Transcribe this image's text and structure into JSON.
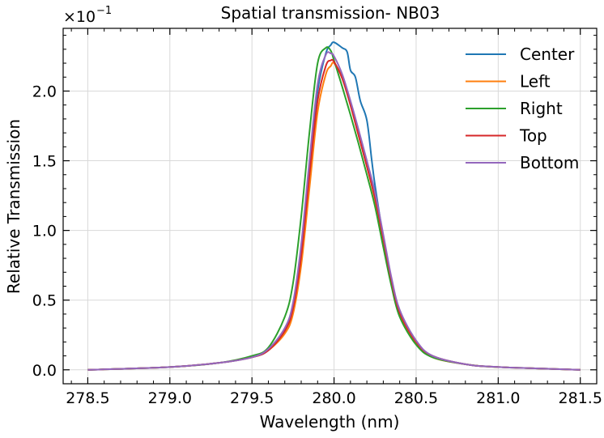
{
  "chart_data": {
    "type": "line",
    "title": "Spatial transmission- NB03",
    "xlabel": "Wavelength (nm)",
    "ylabel": "Relative Transmission",
    "xlim": [
      278.35,
      281.6
    ],
    "ylim": [
      -0.1,
      2.45
    ],
    "xticks": [
      278.5,
      279.0,
      279.5,
      280.0,
      280.5,
      281.0,
      281.5
    ],
    "xtick_labels": [
      "278.5",
      "279.0",
      "279.5",
      "280.0",
      "280.5",
      "281.0",
      "281.5"
    ],
    "yticks": [
      0.0,
      0.5,
      1.0,
      1.5,
      2.0
    ],
    "ytick_labels": [
      "0.0",
      "0.5",
      "1.0",
      "1.5",
      "2.0"
    ],
    "y_scale_base": "×10",
    "y_scale_exp": "−1",
    "grid": true,
    "legend_position": "top-right",
    "series": [
      {
        "name": "Center",
        "color": "#1f77b4",
        "x": [
          278.5,
          279.0,
          279.3,
          279.5,
          279.6,
          279.7,
          279.75,
          279.8,
          279.85,
          279.9,
          279.95,
          279.98,
          280.0,
          280.05,
          280.08,
          280.1,
          280.13,
          280.16,
          280.2,
          280.23,
          280.25,
          280.3,
          280.35,
          280.4,
          280.5,
          280.6,
          280.8,
          281.0,
          281.5
        ],
        "y": [
          0.0,
          0.02,
          0.05,
          0.09,
          0.14,
          0.28,
          0.45,
          0.85,
          1.45,
          2.0,
          2.27,
          2.33,
          2.35,
          2.31,
          2.28,
          2.15,
          2.1,
          1.93,
          1.79,
          1.5,
          1.32,
          0.95,
          0.65,
          0.42,
          0.2,
          0.1,
          0.04,
          0.02,
          0.0
        ]
      },
      {
        "name": "Left",
        "color": "#ff7f0e",
        "x": [
          278.5,
          279.0,
          279.3,
          279.5,
          279.6,
          279.7,
          279.75,
          279.8,
          279.85,
          279.9,
          279.95,
          279.98,
          280.0,
          280.05,
          280.1,
          280.15,
          280.2,
          280.25,
          280.3,
          280.35,
          280.4,
          280.5,
          280.6,
          280.8,
          281.0,
          281.5
        ],
        "y": [
          0.0,
          0.02,
          0.05,
          0.09,
          0.14,
          0.26,
          0.4,
          0.75,
          1.3,
          1.85,
          2.12,
          2.18,
          2.2,
          2.1,
          1.9,
          1.68,
          1.46,
          1.22,
          0.93,
          0.63,
          0.4,
          0.19,
          0.09,
          0.04,
          0.02,
          0.0
        ]
      },
      {
        "name": "Right",
        "color": "#2ca02c",
        "x": [
          278.5,
          279.0,
          279.3,
          279.5,
          279.6,
          279.7,
          279.75,
          279.8,
          279.85,
          279.9,
          279.95,
          279.98,
          280.0,
          280.05,
          280.1,
          280.15,
          280.2,
          280.25,
          280.3,
          280.35,
          280.4,
          280.5,
          280.6,
          280.8,
          281.0,
          281.5
        ],
        "y": [
          0.0,
          0.02,
          0.05,
          0.1,
          0.16,
          0.38,
          0.62,
          1.1,
          1.7,
          2.2,
          2.31,
          2.29,
          2.22,
          2.03,
          1.83,
          1.62,
          1.4,
          1.17,
          0.88,
          0.6,
          0.38,
          0.18,
          0.09,
          0.04,
          0.02,
          0.0
        ]
      },
      {
        "name": "Top",
        "color": "#d62728",
        "x": [
          278.5,
          279.0,
          279.3,
          279.5,
          279.6,
          279.7,
          279.75,
          279.8,
          279.85,
          279.9,
          279.95,
          279.98,
          280.0,
          280.05,
          280.1,
          280.15,
          280.2,
          280.25,
          280.3,
          280.35,
          280.4,
          280.5,
          280.6,
          280.8,
          281.0,
          281.5
        ],
        "y": [
          0.0,
          0.02,
          0.05,
          0.09,
          0.14,
          0.28,
          0.44,
          0.82,
          1.4,
          1.93,
          2.18,
          2.22,
          2.21,
          2.09,
          1.9,
          1.68,
          1.46,
          1.23,
          0.94,
          0.64,
          0.41,
          0.2,
          0.1,
          0.04,
          0.02,
          0.0
        ]
      },
      {
        "name": "Bottom",
        "color": "#9467bd",
        "x": [
          278.5,
          279.0,
          279.3,
          279.5,
          279.6,
          279.7,
          279.75,
          279.8,
          279.85,
          279.9,
          279.95,
          279.98,
          280.0,
          280.05,
          280.1,
          280.15,
          280.2,
          280.25,
          280.3,
          280.35,
          280.4,
          280.5,
          280.6,
          280.8,
          281.0,
          281.5
        ],
        "y": [
          0.0,
          0.02,
          0.05,
          0.09,
          0.15,
          0.3,
          0.48,
          0.9,
          1.5,
          2.05,
          2.26,
          2.27,
          2.25,
          2.12,
          1.93,
          1.72,
          1.5,
          1.27,
          0.97,
          0.66,
          0.43,
          0.21,
          0.1,
          0.04,
          0.02,
          0.0
        ]
      }
    ]
  }
}
